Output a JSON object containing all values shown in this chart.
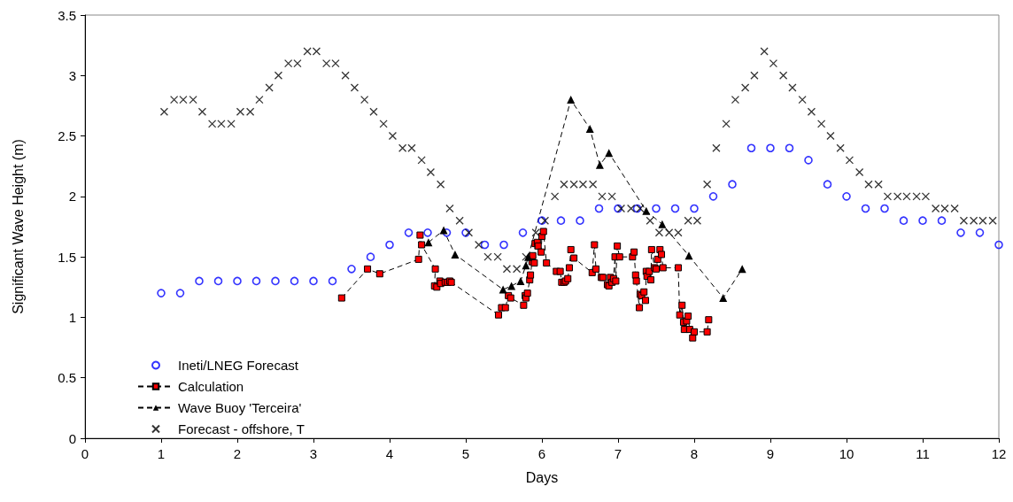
{
  "chart_data": {
    "type": "line",
    "xlabel": "Days",
    "ylabel": "Significant Wave Height (m)",
    "xlim": [
      0,
      12
    ],
    "xticks": [
      0,
      1,
      2,
      3,
      4,
      5,
      6,
      7,
      8,
      9,
      10,
      11,
      12
    ],
    "ylim": [
      0,
      3.5
    ],
    "yticks": [
      0,
      0.5,
      1,
      1.5,
      2,
      2.5,
      3,
      3.5
    ],
    "grid": false,
    "legend": "bottom left",
    "series": [
      {
        "name": "Ineti/LNEG Forecast",
        "type": "scatter",
        "marker": "circle",
        "color": "#0000ff",
        "x": [
          1,
          1.25,
          1.5,
          1.75,
          2,
          2.25,
          2.5,
          2.75,
          3,
          3.25,
          3.5,
          3.75,
          4,
          4.25,
          4.5,
          4.75,
          5,
          5.25,
          5.5,
          5.75,
          6,
          6.25,
          6.5,
          6.75,
          7,
          7.25,
          7.5,
          7.75,
          8,
          8.25,
          8.5,
          8.75,
          9,
          9.25,
          9.5,
          9.75,
          10,
          10.25,
          10.5,
          10.75,
          11,
          11.25,
          11.5,
          11.75,
          12
        ],
        "values": [
          1.2,
          1.2,
          1.3,
          1.3,
          1.3,
          1.3,
          1.3,
          1.3,
          1.3,
          1.3,
          1.4,
          1.5,
          1.6,
          1.7,
          1.7,
          1.7,
          1.7,
          1.6,
          1.6,
          1.7,
          1.8,
          1.8,
          1.8,
          1.9,
          1.9,
          1.9,
          1.9,
          1.9,
          1.9,
          2.0,
          2.1,
          2.4,
          2.4,
          2.4,
          2.3,
          2.1,
          2.0,
          1.9,
          1.9,
          1.8,
          1.8,
          1.8,
          1.7,
          1.7,
          1.6
        ]
      },
      {
        "name": "Calculation",
        "type": "line",
        "marker": "square",
        "line_style": "dashed",
        "color": "#ff0000",
        "x": [
          3.37,
          3.71,
          3.87,
          4.38,
          4.4,
          4.42,
          4.6,
          4.59,
          4.62,
          4.66,
          4.67,
          4.73,
          4.76,
          4.79,
          4.81,
          5.43,
          5.47,
          5.52,
          5.56,
          5.59,
          5.76,
          5.78,
          5.79,
          5.81,
          5.84,
          5.85,
          5.87,
          5.88,
          5.9,
          5.91,
          5.94,
          5.95,
          5.99,
          6.0,
          6.02,
          6.06,
          6.19,
          6.24,
          6.26,
          6.29,
          6.31,
          6.34,
          6.36,
          6.38,
          6.42,
          6.66,
          6.69,
          6.71,
          6.78,
          6.8,
          6.86,
          6.88,
          6.9,
          6.92,
          6.94,
          6.96,
          6.97,
          6.99,
          7.02,
          7.19,
          7.21,
          7.23,
          7.24,
          7.28,
          7.29,
          7.31,
          7.34,
          7.36,
          7.37,
          7.38,
          7.41,
          7.43,
          7.44,
          7.48,
          7.5,
          7.52,
          7.55,
          7.57,
          7.59,
          7.79,
          7.81,
          7.84,
          7.86,
          7.87,
          7.9,
          7.92,
          7.94,
          7.98,
          8.0,
          8.17,
          8.19
        ],
        "values": [
          1.16,
          1.4,
          1.36,
          1.48,
          1.68,
          1.6,
          1.4,
          1.26,
          1.25,
          1.3,
          1.28,
          1.29,
          1.29,
          1.3,
          1.29,
          1.02,
          1.08,
          1.08,
          1.18,
          1.16,
          1.1,
          1.18,
          1.16,
          1.2,
          1.31,
          1.35,
          1.46,
          1.51,
          1.45,
          1.61,
          1.62,
          1.59,
          1.54,
          1.67,
          1.71,
          1.45,
          1.38,
          1.38,
          1.29,
          1.29,
          1.3,
          1.32,
          1.41,
          1.56,
          1.49,
          1.37,
          1.6,
          1.4,
          1.33,
          1.33,
          1.27,
          1.26,
          1.33,
          1.29,
          1.32,
          1.5,
          1.3,
          1.59,
          1.5,
          1.5,
          1.54,
          1.35,
          1.3,
          1.08,
          1.19,
          1.18,
          1.21,
          1.14,
          1.38,
          1.34,
          1.38,
          1.31,
          1.56,
          1.41,
          1.4,
          1.48,
          1.56,
          1.52,
          1.41,
          1.41,
          1.02,
          1.1,
          0.96,
          0.9,
          0.97,
          1.01,
          0.9,
          0.83,
          0.88,
          0.88,
          0.98
        ]
      },
      {
        "name": "Wave Buoy 'Terceira'",
        "type": "line",
        "marker": "triangle",
        "line_style": "dashed",
        "color": "#000000",
        "x": [
          4.51,
          4.71,
          4.86,
          5.49,
          5.6,
          5.72,
          5.79,
          5.82,
          6.38,
          6.63,
          6.76,
          6.88,
          7.37,
          7.58,
          7.93,
          8.38,
          8.63
        ],
        "values": [
          1.62,
          1.72,
          1.52,
          1.23,
          1.26,
          1.3,
          1.43,
          1.5,
          2.8,
          2.56,
          2.26,
          2.36,
          1.88,
          1.77,
          1.51,
          1.16,
          1.4
        ]
      },
      {
        "name": "Forecast - offshore, T",
        "type": "scatter",
        "marker": "cross",
        "color": "#000000",
        "x": [
          1.04,
          1.17,
          1.29,
          1.42,
          1.54,
          1.67,
          1.79,
          1.92,
          2.04,
          2.17,
          2.29,
          2.42,
          2.54,
          2.67,
          2.79,
          2.92,
          3.04,
          3.17,
          3.29,
          3.42,
          3.54,
          3.67,
          3.79,
          3.92,
          4.04,
          4.17,
          4.29,
          4.42,
          4.54,
          4.67,
          4.79,
          4.92,
          5.04,
          5.17,
          5.29,
          5.42,
          5.54,
          5.67,
          5.79,
          5.92,
          6.04,
          6.17,
          6.29,
          6.42,
          6.54,
          6.67,
          6.79,
          6.92,
          7.04,
          7.17,
          7.29,
          7.42,
          7.54,
          7.67,
          7.79,
          7.92,
          8.04,
          8.17,
          8.29,
          8.42,
          8.54,
          8.67,
          8.79,
          8.92,
          9.04,
          9.17,
          9.29,
          9.42,
          9.54,
          9.67,
          9.79,
          9.92,
          10.04,
          10.17,
          10.29,
          10.42,
          10.54,
          10.67,
          10.79,
          10.92,
          11.04,
          11.17,
          11.29,
          11.42,
          11.54,
          11.67,
          11.79,
          11.92
        ],
        "values": [
          2.7,
          2.8,
          2.8,
          2.8,
          2.7,
          2.6,
          2.6,
          2.6,
          2.7,
          2.7,
          2.8,
          2.9,
          3.0,
          3.1,
          3.1,
          3.2,
          3.2,
          3.1,
          3.1,
          3.0,
          2.9,
          2.8,
          2.7,
          2.6,
          2.5,
          2.4,
          2.4,
          2.3,
          2.2,
          2.1,
          1.9,
          1.8,
          1.7,
          1.6,
          1.5,
          1.5,
          1.4,
          1.4,
          1.5,
          1.7,
          1.8,
          2.0,
          2.1,
          2.1,
          2.1,
          2.1,
          2.0,
          2.0,
          1.9,
          1.9,
          1.9,
          1.8,
          1.7,
          1.7,
          1.7,
          1.8,
          1.8,
          2.1,
          2.4,
          2.6,
          2.8,
          2.9,
          3.0,
          3.2,
          3.1,
          3.0,
          2.9,
          2.8,
          2.7,
          2.6,
          2.5,
          2.4,
          2.3,
          2.2,
          2.1,
          2.1,
          2.0,
          2.0,
          2.0,
          2.0,
          2.0,
          1.9,
          1.9,
          1.9,
          1.8,
          1.8,
          1.8,
          1.8
        ]
      }
    ]
  }
}
